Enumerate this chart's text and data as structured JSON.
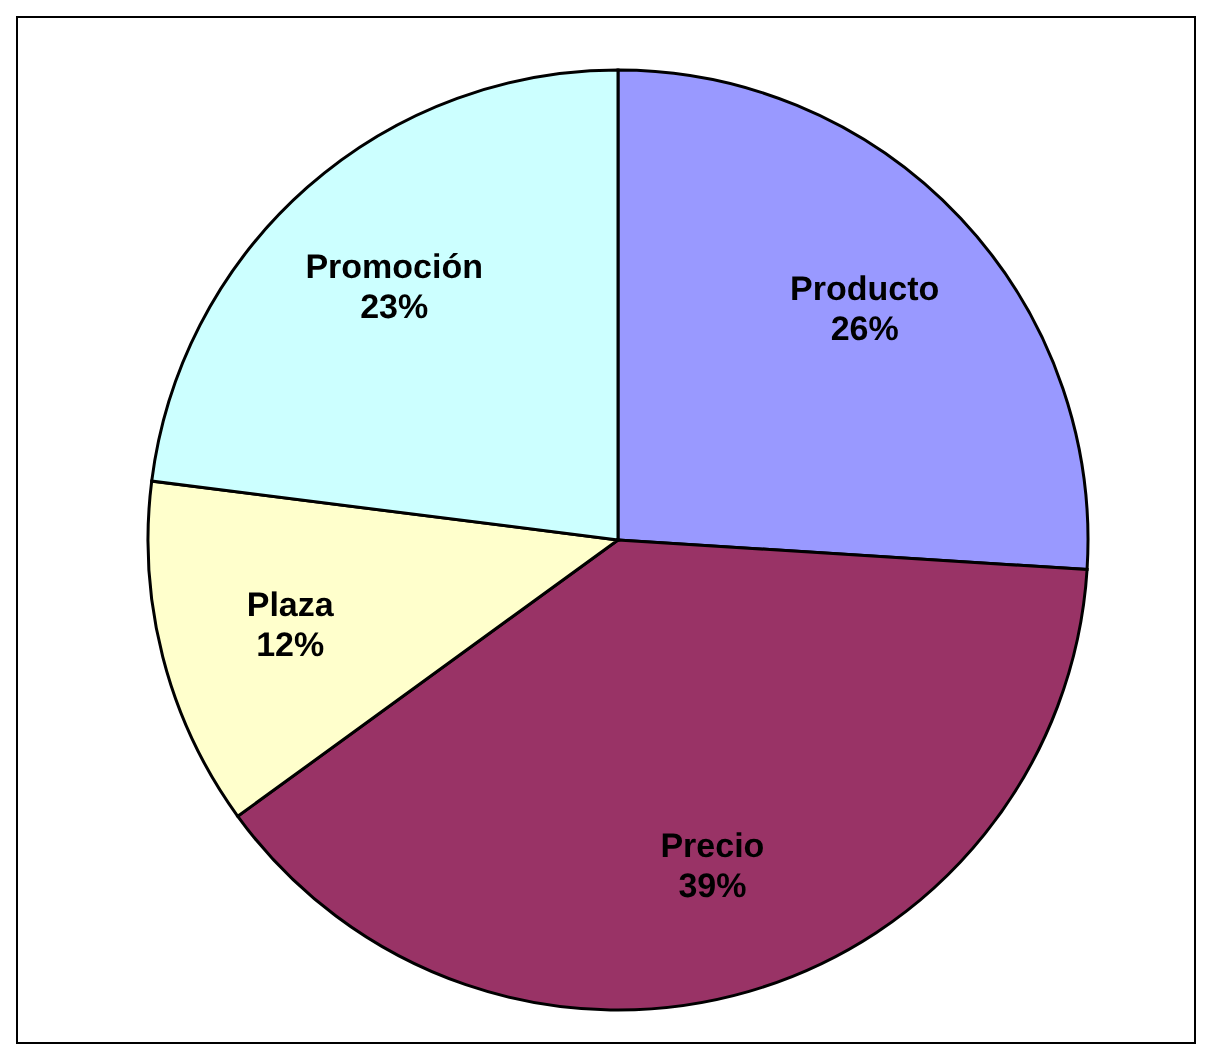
{
  "chart_data": {
    "type": "pie",
    "categories": [
      "Producto",
      "Precio",
      "Plaza",
      "Promoción"
    ],
    "values": [
      26,
      39,
      12,
      23
    ],
    "value_labels": [
      "26%",
      "39%",
      "12%",
      "23%"
    ],
    "colors": [
      "#9999ff",
      "#993366",
      "#ffffcc",
      "#ccffff"
    ]
  }
}
